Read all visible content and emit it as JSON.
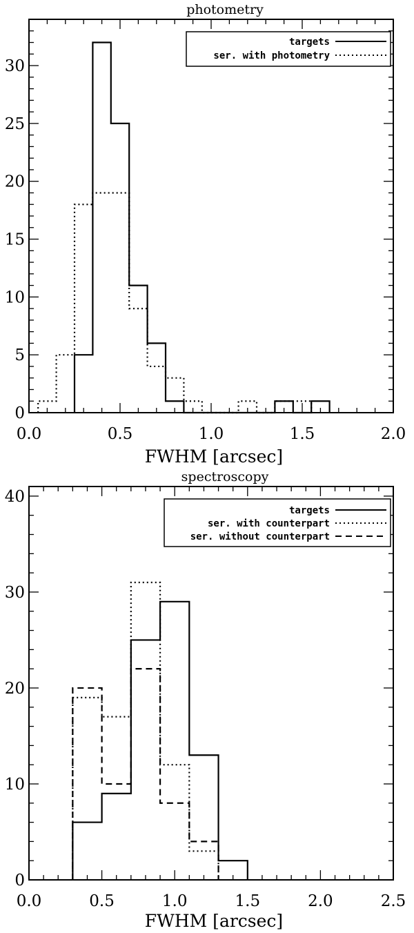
{
  "chart_data": [
    {
      "type": "histogram",
      "title": "photometry",
      "xlabel": "FWHM [arcsec]",
      "ylabel": "",
      "xlim": [
        0.0,
        2.0
      ],
      "ylim": [
        0,
        34
      ],
      "xticks": [
        "0.0",
        "0.5",
        "1.0",
        "1.5",
        "2.0"
      ],
      "yticks": [
        "0",
        "5",
        "10",
        "15",
        "20",
        "25",
        "30"
      ],
      "bin_width": 0.1,
      "legend_position": "top-right",
      "series": [
        {
          "name": "targets",
          "linestyle": "solid",
          "bin_starts": [
            0.25,
            0.35,
            0.45,
            0.55,
            0.65,
            0.75,
            0.85,
            0.95,
            1.05,
            1.15,
            1.25,
            1.35,
            1.45,
            1.55
          ],
          "values": [
            5,
            32,
            25,
            11,
            6,
            1,
            0,
            0,
            0,
            0,
            0,
            1,
            0,
            1
          ]
        },
        {
          "name": "ser. with photometry",
          "linestyle": "dotted",
          "bin_starts": [
            0.05,
            0.15,
            0.25,
            0.35,
            0.45,
            0.55,
            0.65,
            0.75,
            0.85,
            0.95,
            1.05,
            1.15,
            1.25,
            1.35,
            1.45
          ],
          "values": [
            1,
            5,
            18,
            19,
            19,
            9,
            4,
            3,
            1,
            0,
            0,
            1,
            0,
            1,
            1
          ]
        }
      ]
    },
    {
      "type": "histogram",
      "title": "spectroscopy",
      "xlabel": "FWHM [arcsec]",
      "ylabel": "",
      "xlim": [
        0.0,
        2.5
      ],
      "ylim": [
        0,
        41
      ],
      "xticks": [
        "0.0",
        "0.5",
        "1.0",
        "1.5",
        "2.0",
        "2.5"
      ],
      "yticks": [
        "0",
        "10",
        "20",
        "30",
        "40"
      ],
      "bin_width": 0.2,
      "legend_position": "top-right",
      "series": [
        {
          "name": "targets",
          "linestyle": "solid",
          "bin_starts": [
            0.3,
            0.5,
            0.7,
            0.9,
            1.1,
            1.3
          ],
          "values": [
            6,
            9,
            25,
            29,
            13,
            2
          ]
        },
        {
          "name": "ser. with counterpart",
          "linestyle": "dotted",
          "bin_starts": [
            0.3,
            0.5,
            0.7,
            0.9,
            1.1
          ],
          "values": [
            19,
            17,
            31,
            12,
            3
          ]
        },
        {
          "name": "ser. without counterpart",
          "linestyle": "dashed",
          "bin_starts": [
            0.3,
            0.5,
            0.7,
            0.9,
            1.1
          ],
          "values": [
            20,
            10,
            22,
            8,
            4
          ]
        }
      ]
    }
  ]
}
